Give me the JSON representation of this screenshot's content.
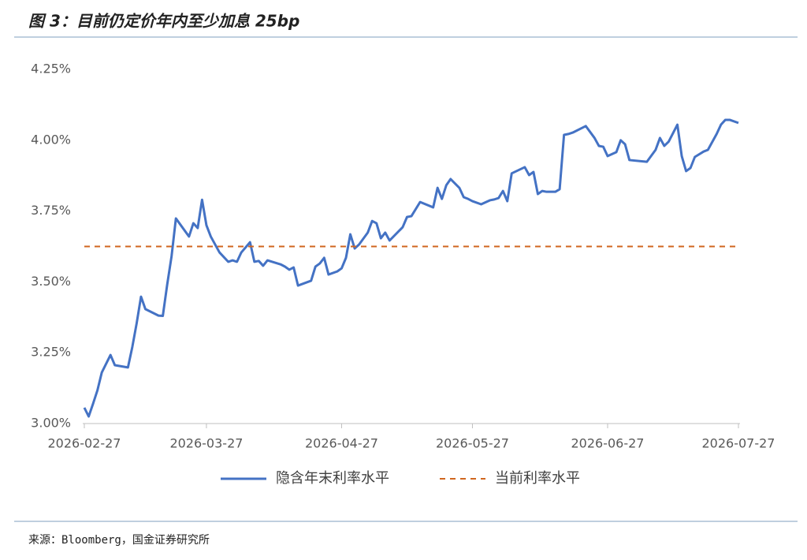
{
  "chart_data": {
    "type": "line",
    "title": "图 3：目前仍定价年内至少加息 25bp",
    "source": "来源：Bloomberg，国金证券研究所",
    "xlim": [
      "2026-02-27",
      "2026-07-27"
    ],
    "xticks": [
      "2026-02-27",
      "2026-03-27",
      "2026-04-27",
      "2026-05-27",
      "2026-06-27",
      "2026-07-27"
    ],
    "ylim": [
      3.0,
      4.25
    ],
    "yticks": [
      {
        "value": 3.0,
        "label": "3.00%"
      },
      {
        "value": 3.25,
        "label": "3.25%"
      },
      {
        "value": 3.5,
        "label": "3.50%"
      },
      {
        "value": 3.75,
        "label": "3.75%"
      },
      {
        "value": 4.0,
        "label": "4.00%"
      },
      {
        "value": 4.25,
        "label": "4.25%"
      }
    ],
    "grid": false,
    "legend": "bottom",
    "series": [
      {
        "name": "隐含年末利率水平",
        "color": "#4472c4",
        "dash": false,
        "x": [
          "2026-02-27",
          "2026-02-28",
          "2026-03-01",
          "2026-03-02",
          "2026-03-03",
          "2026-03-05",
          "2026-03-06",
          "2026-03-09",
          "2026-03-10",
          "2026-03-11",
          "2026-03-12",
          "2026-03-13",
          "2026-03-16",
          "2026-03-17",
          "2026-03-18",
          "2026-03-19",
          "2026-03-20",
          "2026-03-23",
          "2026-03-24",
          "2026-03-25",
          "2026-03-26",
          "2026-03-27",
          "2026-03-28",
          "2026-03-30",
          "2026-04-01",
          "2026-04-02",
          "2026-04-03",
          "2026-04-04",
          "2026-04-06",
          "2026-04-07",
          "2026-04-08",
          "2026-04-09",
          "2026-04-10",
          "2026-04-13",
          "2026-04-14",
          "2026-04-15",
          "2026-04-16",
          "2026-04-17",
          "2026-04-20",
          "2026-04-21",
          "2026-04-22",
          "2026-04-23",
          "2026-04-24",
          "2026-04-26",
          "2026-04-27",
          "2026-04-28",
          "2026-04-29",
          "2026-04-30",
          "2026-05-01",
          "2026-05-03",
          "2026-05-04",
          "2026-05-05",
          "2026-05-06",
          "2026-05-07",
          "2026-05-08",
          "2026-05-11",
          "2026-05-12",
          "2026-05-13",
          "2026-05-15",
          "2026-05-18",
          "2026-05-19",
          "2026-05-20",
          "2026-05-21",
          "2026-05-22",
          "2026-05-24",
          "2026-05-25",
          "2026-05-26",
          "2026-05-27",
          "2026-05-29",
          "2026-05-31",
          "2026-06-01",
          "2026-06-02",
          "2026-06-03",
          "2026-06-04",
          "2026-06-05",
          "2026-06-08",
          "2026-06-09",
          "2026-06-10",
          "2026-06-11",
          "2026-06-12",
          "2026-06-13",
          "2026-06-15",
          "2026-06-16",
          "2026-06-17",
          "2026-06-18",
          "2026-06-19",
          "2026-06-22",
          "2026-06-24",
          "2026-06-25",
          "2026-06-26",
          "2026-06-27",
          "2026-06-29",
          "2026-06-30",
          "2026-07-01",
          "2026-07-02",
          "2026-07-06",
          "2026-07-08",
          "2026-07-09",
          "2026-07-10",
          "2026-07-11",
          "2026-07-13",
          "2026-07-14",
          "2026-07-15",
          "2026-07-16",
          "2026-07-17",
          "2026-07-19",
          "2026-07-20",
          "2026-07-22",
          "2026-07-23",
          "2026-07-24",
          "2026-07-25",
          "2026-07-27"
        ],
        "values": [
          3.056,
          3.025,
          3.07,
          3.117,
          3.18,
          3.242,
          3.206,
          3.198,
          3.27,
          3.354,
          3.448,
          3.404,
          3.381,
          3.38,
          3.49,
          3.59,
          3.724,
          3.66,
          3.707,
          3.69,
          3.79,
          3.7,
          3.66,
          3.604,
          3.571,
          3.576,
          3.571,
          3.604,
          3.64,
          3.571,
          3.574,
          3.557,
          3.576,
          3.562,
          3.554,
          3.543,
          3.551,
          3.487,
          3.504,
          3.554,
          3.565,
          3.585,
          3.526,
          3.537,
          3.548,
          3.585,
          3.668,
          3.618,
          3.632,
          3.674,
          3.715,
          3.707,
          3.654,
          3.674,
          3.646,
          3.693,
          3.729,
          3.732,
          3.782,
          3.763,
          3.832,
          3.793,
          3.841,
          3.863,
          3.832,
          3.799,
          3.793,
          3.785,
          3.774,
          3.788,
          3.791,
          3.796,
          3.821,
          3.785,
          3.883,
          3.905,
          3.877,
          3.888,
          3.81,
          3.821,
          3.818,
          3.818,
          3.827,
          4.019,
          4.022,
          4.027,
          4.05,
          4.008,
          3.98,
          3.977,
          3.944,
          3.958,
          4.0,
          3.986,
          3.93,
          3.924,
          3.966,
          4.008,
          3.98,
          3.995,
          4.055,
          3.944,
          3.891,
          3.902,
          3.941,
          3.96,
          3.966,
          4.022,
          4.055,
          4.072,
          4.072,
          4.061
        ]
      },
      {
        "name": "当前利率水平",
        "color": "#d0661f",
        "dash": true,
        "x": [
          "2026-02-27",
          "2026-07-27"
        ],
        "values": [
          3.625,
          3.625
        ]
      }
    ]
  }
}
